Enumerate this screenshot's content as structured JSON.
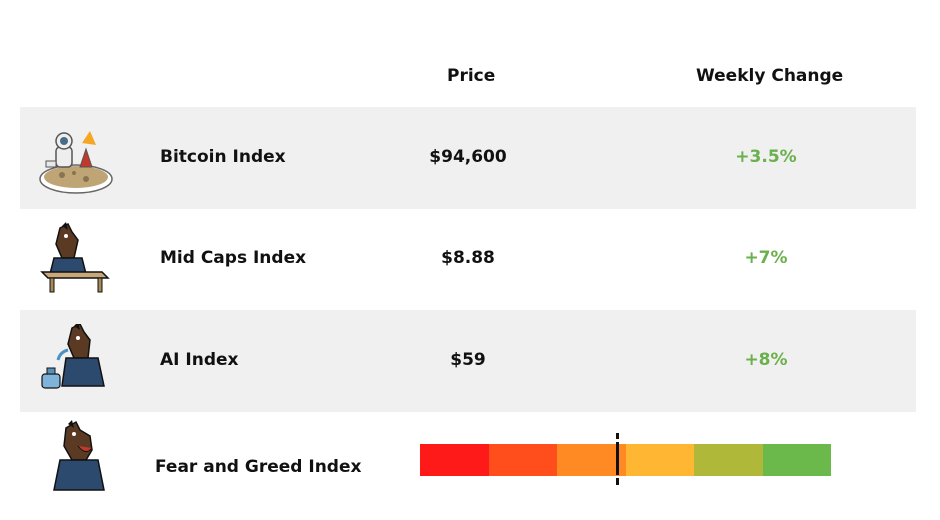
{
  "header": {
    "price": "Price",
    "weekly_change": "Weekly Change"
  },
  "rows": [
    {
      "name": "Bitcoin Index",
      "price": "$94,600",
      "change": "+3.5%",
      "icon": "astronaut-on-asteroid-icon"
    },
    {
      "name": "Mid Caps Index",
      "price": "$8.88",
      "change": "+7%",
      "icon": "horse-at-desk-icon"
    },
    {
      "name": "AI Index",
      "price": "$59",
      "change": "+8%",
      "icon": "horse-with-inhaler-icon"
    }
  ],
  "fear_greed": {
    "name": "Fear and Greed Index",
    "icon": "laughing-horse-icon",
    "level": 0.48,
    "segment_colors": [
      "#ff1a1a",
      "#ff4e1b",
      "#ff8a24",
      "#ffb733",
      "#b0b83a",
      "#6ab94a"
    ]
  },
  "colors": {
    "positive": "#6ab04c",
    "row_shade": "#f0f0f0"
  }
}
